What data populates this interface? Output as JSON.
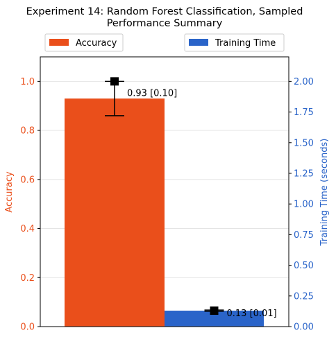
{
  "chart_data": {
    "type": "bar",
    "title_lines": [
      "Experiment 14: Random Forest Classification, Sampled",
      "Performance Summary"
    ],
    "colors": {
      "accuracy": "#ea4f1b",
      "time": "#2a64c9",
      "text": "#000000"
    },
    "legend": {
      "placement": "top",
      "entries": [
        "Accuracy",
        "Training Time"
      ]
    },
    "grid": true,
    "y_left": {
      "label": "Accuracy",
      "lim": [
        0,
        1.1
      ],
      "ticks": [
        0.0,
        0.2,
        0.4,
        0.6,
        0.8,
        1.0
      ],
      "tick_labels": [
        "0.0",
        "0.2",
        "0.4",
        "0.6",
        "0.8",
        "1.0"
      ]
    },
    "y_right": {
      "label": "Training Time (seconds)",
      "lim": [
        0,
        2.2
      ],
      "ticks": [
        0.0,
        0.25,
        0.5,
        0.75,
        1.0,
        1.25,
        1.5,
        1.75,
        2.0
      ],
      "tick_labels": [
        "0.00",
        "0.25",
        "0.50",
        "0.75",
        "1.00",
        "1.25",
        "1.50",
        "1.75",
        "2.00"
      ]
    },
    "series": [
      {
        "name": "Accuracy",
        "axis": "left",
        "value": 0.93,
        "error_low": 0.86,
        "error_high": 1.0,
        "marker": 1.0,
        "label": "0.93 [0.10]"
      },
      {
        "name": "Training Time",
        "axis": "right",
        "value": 0.13,
        "error_low": 0.125,
        "error_high": 0.135,
        "marker": 0.13,
        "label": "0.13 [0.01]"
      }
    ]
  }
}
